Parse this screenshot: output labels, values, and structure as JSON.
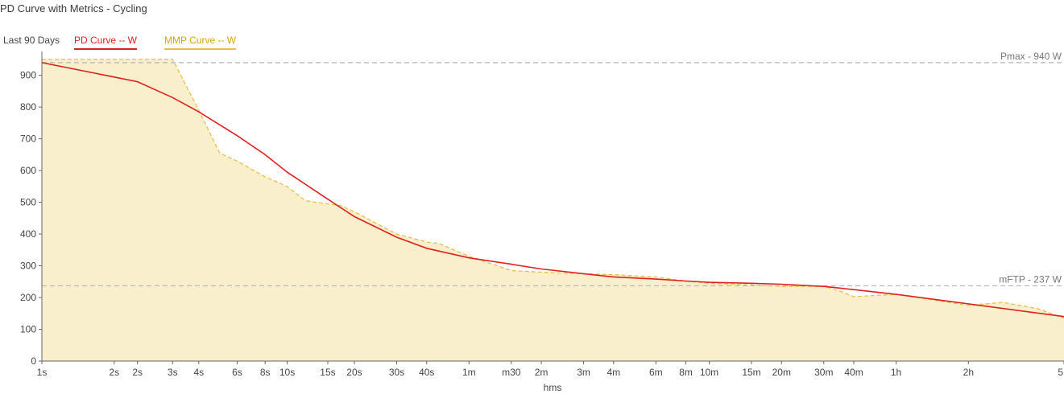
{
  "header": {
    "title": "PD Curve with Metrics - Cycling"
  },
  "legend": {
    "period": "Last 90 Days",
    "pd_label": "PD Curve  -- W",
    "mmp_label": "MMP Curve  -- W"
  },
  "colors": {
    "pd": "#e02020",
    "mmp_line": "#e6c14a",
    "mmp_fill": "#f9efcc",
    "ref": "#b5b5b5"
  },
  "chart_data": {
    "type": "area",
    "xlabel": "hms",
    "ylabel": "",
    "ylim": [
      0,
      960
    ],
    "yticks": [
      0,
      100,
      200,
      300,
      400,
      500,
      600,
      700,
      800,
      900
    ],
    "x_scale": "log",
    "x_unit": "seconds",
    "xlim": [
      1,
      18000
    ],
    "xticks": [
      {
        "s": 1,
        "label": "1s"
      },
      {
        "s": 2,
        "label": "2s"
      },
      {
        "s": 2.5,
        "label": "2s"
      },
      {
        "s": 3.5,
        "label": "3s"
      },
      {
        "s": 4.5,
        "label": "4s"
      },
      {
        "s": 6.5,
        "label": "6s"
      },
      {
        "s": 8.5,
        "label": "8s"
      },
      {
        "s": 10.5,
        "label": "10s"
      },
      {
        "s": 15.5,
        "label": "15s"
      },
      {
        "s": 20,
        "label": "20s"
      },
      {
        "s": 30,
        "label": "30s"
      },
      {
        "s": 40,
        "label": "40s"
      },
      {
        "s": 60,
        "label": "1m"
      },
      {
        "s": 90,
        "label": "m30"
      },
      {
        "s": 120,
        "label": "2m"
      },
      {
        "s": 180,
        "label": "3m"
      },
      {
        "s": 240,
        "label": "4m"
      },
      {
        "s": 360,
        "label": "6m"
      },
      {
        "s": 480,
        "label": "8m"
      },
      {
        "s": 600,
        "label": "10m"
      },
      {
        "s": 900,
        "label": "15m"
      },
      {
        "s": 1200,
        "label": "20m"
      },
      {
        "s": 1800,
        "label": "30m"
      },
      {
        "s": 2400,
        "label": "40m"
      },
      {
        "s": 3600,
        "label": "1h"
      },
      {
        "s": 7200,
        "label": "2h"
      },
      {
        "s": 18000,
        "label": "5"
      }
    ],
    "reference_lines": [
      {
        "name": "Pmax",
        "value": 940,
        "label": "Pmax - 940 W"
      },
      {
        "name": "mFTP",
        "value": 237,
        "label": "mFTP - 237 W"
      }
    ],
    "series": [
      {
        "name": "PD Curve",
        "style": "solid",
        "x": [
          1,
          2.5,
          3.5,
          4.5,
          6.5,
          8.5,
          10.5,
          15.5,
          20,
          30,
          40,
          60,
          90,
          120,
          180,
          240,
          360,
          480,
          600,
          900,
          1200,
          1800,
          2400,
          3600,
          7200,
          18000
        ],
        "y": [
          940,
          880,
          830,
          785,
          710,
          650,
          595,
          510,
          455,
          390,
          355,
          325,
          305,
          290,
          275,
          265,
          258,
          252,
          248,
          245,
          242,
          235,
          225,
          210,
          180,
          140
        ]
      },
      {
        "name": "MMP Curve",
        "style": "dashed",
        "filled": true,
        "x": [
          1,
          2,
          3.5,
          4.5,
          5.5,
          6.5,
          8.5,
          10.5,
          12.5,
          15.5,
          17.5,
          20,
          30,
          40,
          45,
          60,
          90,
          120,
          180,
          240,
          360,
          480,
          600,
          900,
          1200,
          1800,
          2100,
          2400,
          3600,
          5400,
          7200,
          10000,
          14000,
          18000
        ],
        "y": [
          950,
          950,
          950,
          790,
          655,
          630,
          580,
          550,
          505,
          495,
          490,
          470,
          400,
          375,
          370,
          330,
          285,
          280,
          275,
          272,
          265,
          252,
          245,
          240,
          235,
          235,
          220,
          203,
          210,
          190,
          175,
          185,
          165,
          135
        ]
      }
    ]
  }
}
